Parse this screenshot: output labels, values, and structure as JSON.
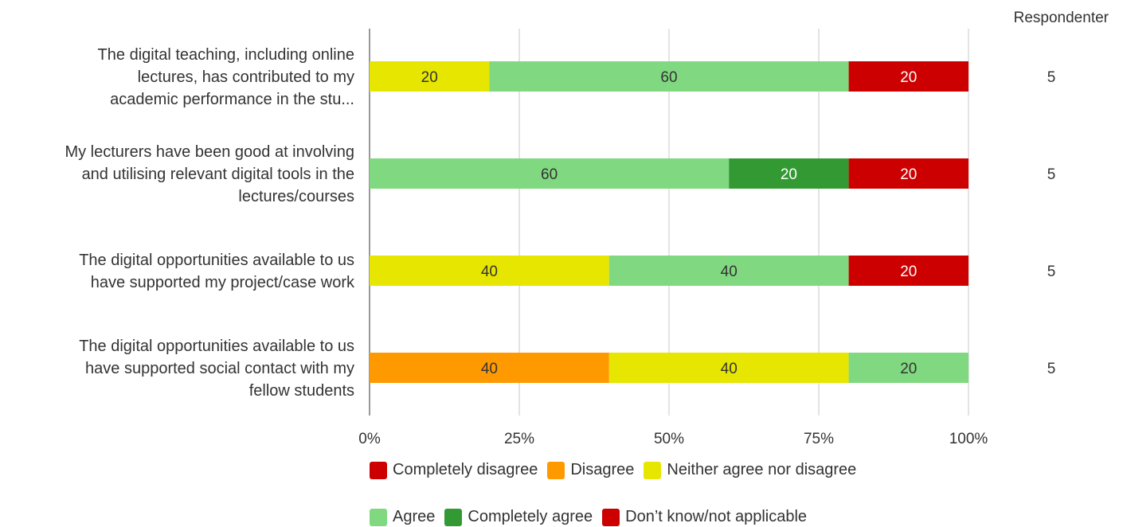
{
  "chart_data": {
    "type": "bar",
    "orientation": "horizontal",
    "stacked": "percent",
    "categories": [
      [
        "The digital teaching, including online",
        "lectures, has contributed to my",
        "academic performance in the stu..."
      ],
      [
        "My lecturers have been good at involving",
        "and utilising relevant digital tools in the",
        "lectures/courses"
      ],
      [
        "The digital opportunities available to us",
        "have supported my project/case work"
      ],
      [
        "The digital opportunities available to us",
        "have supported social contact with my",
        "fellow students"
      ]
    ],
    "series": [
      {
        "name": "Completely disagree",
        "color": "#cc0000",
        "values": [
          0,
          0,
          0,
          0
        ]
      },
      {
        "name": "Disagree",
        "color": "#ff9900",
        "values": [
          0,
          0,
          0,
          40
        ]
      },
      {
        "name": "Neither agree nor disagree",
        "color": "#e6e600",
        "values": [
          20,
          0,
          40,
          40
        ]
      },
      {
        "name": "Agree",
        "color": "#80d880",
        "values": [
          60,
          60,
          40,
          20
        ]
      },
      {
        "name": "Completely agree",
        "color": "#339933",
        "values": [
          0,
          20,
          0,
          0
        ]
      },
      {
        "name": "Don’t know/not applicable",
        "color": "#cc0000",
        "values": [
          20,
          20,
          20,
          0
        ]
      }
    ],
    "data_labels": [
      [
        "",
        "",
        "20",
        "60",
        "",
        "20"
      ],
      [
        "",
        "",
        "",
        "60",
        "20",
        "20"
      ],
      [
        "",
        "",
        "40",
        "40",
        "",
        "20"
      ],
      [
        "",
        "40",
        "40",
        "20",
        "",
        ""
      ]
    ],
    "xlim": [
      0,
      100
    ],
    "xticks": [
      "0%",
      "25%",
      "50%",
      "75%",
      "100%"
    ],
    "respondents_header": "Respondenter",
    "respondents": [
      "5",
      "5",
      "5",
      "5"
    ],
    "grid": true,
    "legend_position": "bottom"
  }
}
